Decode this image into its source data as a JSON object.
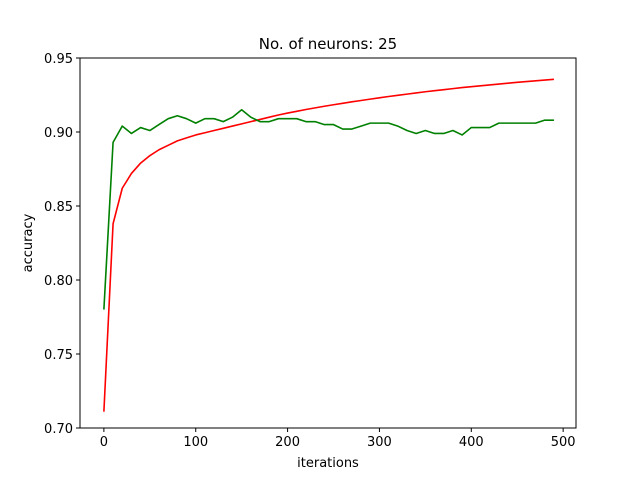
{
  "chart_data": {
    "type": "line",
    "title": "No. of neurons: 25",
    "xlabel": "iterations",
    "ylabel": "accuracy",
    "xlim": [
      -26,
      514
    ],
    "ylim": [
      0.7,
      0.95
    ],
    "xticks": [
      0,
      100,
      200,
      300,
      400,
      500
    ],
    "xtick_labels": [
      "0",
      "100",
      "200",
      "300",
      "400",
      "500"
    ],
    "yticks": [
      0.7,
      0.75,
      0.8,
      0.85,
      0.9,
      0.95
    ],
    "ytick_labels": [
      "0.70",
      "0.75",
      "0.80",
      "0.85",
      "0.90",
      "0.95"
    ],
    "grid": false,
    "x": [
      0,
      10,
      20,
      30,
      40,
      50,
      60,
      70,
      80,
      90,
      100,
      110,
      120,
      130,
      140,
      150,
      160,
      170,
      180,
      190,
      200,
      210,
      220,
      230,
      240,
      250,
      260,
      270,
      280,
      290,
      300,
      310,
      320,
      330,
      340,
      350,
      360,
      370,
      380,
      390,
      400,
      410,
      420,
      430,
      440,
      450,
      460,
      470,
      480,
      490
    ],
    "series": [
      {
        "color": "#ff0000",
        "values": [
          0.711,
          0.838,
          0.862,
          0.872,
          0.879,
          0.884,
          0.888,
          0.891,
          0.894,
          0.896,
          0.898,
          0.8995,
          0.901,
          0.9025,
          0.904,
          0.9055,
          0.907,
          0.9085,
          0.91,
          0.9115,
          0.9128,
          0.914,
          0.9152,
          0.9163,
          0.9174,
          0.9184,
          0.9194,
          0.9204,
          0.9213,
          0.9222,
          0.9231,
          0.924,
          0.9248,
          0.9256,
          0.9264,
          0.9272,
          0.9279,
          0.9286,
          0.9293,
          0.93,
          0.9306,
          0.9312,
          0.9318,
          0.9324,
          0.933,
          0.9336,
          0.9341,
          0.9346,
          0.9351,
          0.9356
        ]
      },
      {
        "color": "#008000",
        "values": [
          0.78,
          0.893,
          0.904,
          0.899,
          0.903,
          0.901,
          0.905,
          0.909,
          0.911,
          0.909,
          0.906,
          0.909,
          0.909,
          0.907,
          0.91,
          0.915,
          0.91,
          0.907,
          0.907,
          0.909,
          0.909,
          0.909,
          0.907,
          0.907,
          0.905,
          0.905,
          0.902,
          0.902,
          0.904,
          0.906,
          0.906,
          0.906,
          0.904,
          0.901,
          0.899,
          0.901,
          0.899,
          0.899,
          0.901,
          0.898,
          0.903,
          0.903,
          0.903,
          0.906,
          0.906,
          0.906,
          0.906,
          0.906,
          0.908,
          0.908
        ]
      }
    ]
  }
}
